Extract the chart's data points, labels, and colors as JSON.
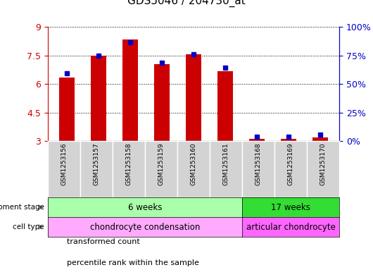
{
  "title": "GDS5046 / 204730_at",
  "samples": [
    "GSM1253156",
    "GSM1253157",
    "GSM1253158",
    "GSM1253159",
    "GSM1253160",
    "GSM1253161",
    "GSM1253168",
    "GSM1253169",
    "GSM1253170"
  ],
  "red_values": [
    6.32,
    7.48,
    8.35,
    7.02,
    7.55,
    6.65,
    3.1,
    3.1,
    3.2
  ],
  "blue_values": [
    6.55,
    7.5,
    8.2,
    7.12,
    7.57,
    6.87,
    3.22,
    3.22,
    3.32
  ],
  "y_min": 3.0,
  "y_max": 9.0,
  "y_ticks": [
    3,
    4.5,
    6,
    7.5,
    9
  ],
  "y_tick_labels": [
    "3",
    "4.5",
    "6",
    "7.5",
    "9"
  ],
  "right_y_ticks": [
    0,
    25,
    50,
    75,
    100
  ],
  "right_y_tick_labels": [
    "0%",
    "25%",
    "50%",
    "75%",
    "100%"
  ],
  "bar_color": "#cc0000",
  "blue_color": "#0000cc",
  "dev_stage_groups": [
    {
      "label": "6 weeks",
      "start": 0,
      "end": 6,
      "color": "#aaffaa"
    },
    {
      "label": "17 weeks",
      "start": 6,
      "end": 9,
      "color": "#33dd33"
    }
  ],
  "cell_type_groups": [
    {
      "label": "chondrocyte condensation",
      "start": 0,
      "end": 6,
      "color": "#ffaaff"
    },
    {
      "label": "articular chondrocyte",
      "start": 6,
      "end": 9,
      "color": "#ff66ff"
    }
  ],
  "legend_items": [
    {
      "color": "#cc0000",
      "label": "transformed count"
    },
    {
      "color": "#0000cc",
      "label": "percentile rank within the sample"
    }
  ],
  "background_color": "#ffffff",
  "sample_bg_color": "#d3d3d3",
  "bar_width": 0.5
}
